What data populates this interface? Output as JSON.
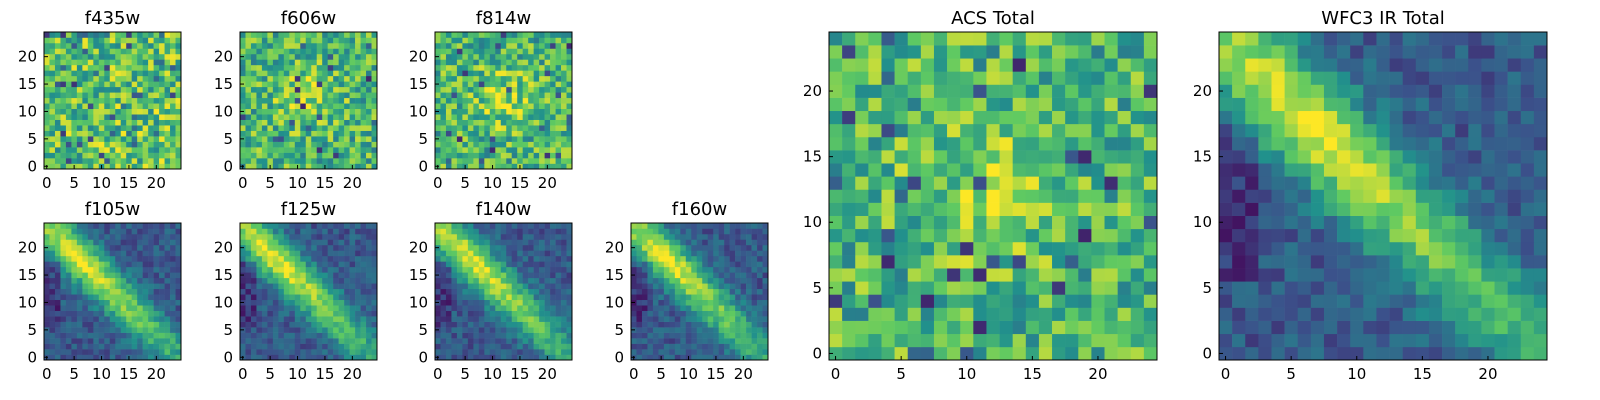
{
  "chart_data": [
    {
      "type": "heatmap",
      "title": "f435w",
      "xticks": [
        0,
        5,
        10,
        15,
        20
      ],
      "yticks": [
        0,
        5,
        10,
        15,
        20
      ],
      "xlim": [
        0,
        25
      ],
      "ylim": [
        0,
        25
      ],
      "grid_size": 25,
      "colormap": "viridis",
      "structure": "noise"
    },
    {
      "type": "heatmap",
      "title": "f606w",
      "xticks": [
        0,
        5,
        10,
        15,
        20
      ],
      "yticks": [
        0,
        5,
        10,
        15,
        20
      ],
      "xlim": [
        0,
        25
      ],
      "ylim": [
        0,
        25
      ],
      "grid_size": 25,
      "colormap": "viridis",
      "structure": "noise-with-faint-center"
    },
    {
      "type": "heatmap",
      "title": "f814w",
      "xticks": [
        0,
        5,
        10,
        15,
        20
      ],
      "yticks": [
        0,
        5,
        10,
        15,
        20
      ],
      "xlim": [
        0,
        25
      ],
      "ylim": [
        0,
        25
      ],
      "grid_size": 25,
      "colormap": "viridis",
      "structure": "noise-with-faint-center"
    },
    {
      "type": "heatmap",
      "title": "f105w",
      "xticks": [
        0,
        5,
        10,
        15,
        20
      ],
      "yticks": [
        0,
        5,
        10,
        15,
        20
      ],
      "xlim": [
        0,
        25
      ],
      "ylim": [
        0,
        25
      ],
      "grid_size": 25,
      "colormap": "viridis",
      "structure": "diagonal-ridge"
    },
    {
      "type": "heatmap",
      "title": "f125w",
      "xticks": [
        0,
        5,
        10,
        15,
        20
      ],
      "yticks": [
        0,
        5,
        10,
        15,
        20
      ],
      "xlim": [
        0,
        25
      ],
      "ylim": [
        0,
        25
      ],
      "grid_size": 25,
      "colormap": "viridis",
      "structure": "diagonal-ridge"
    },
    {
      "type": "heatmap",
      "title": "f140w",
      "xticks": [
        0,
        5,
        10,
        15,
        20
      ],
      "yticks": [
        0,
        5,
        10,
        15,
        20
      ],
      "xlim": [
        0,
        25
      ],
      "ylim": [
        0,
        25
      ],
      "grid_size": 25,
      "colormap": "viridis",
      "structure": "diagonal-ridge"
    },
    {
      "type": "heatmap",
      "title": "f160w",
      "xticks": [
        0,
        5,
        10,
        15,
        20
      ],
      "yticks": [
        0,
        5,
        10,
        15,
        20
      ],
      "xlim": [
        0,
        25
      ],
      "ylim": [
        0,
        25
      ],
      "grid_size": 25,
      "colormap": "viridis",
      "structure": "diagonal-ridge"
    },
    {
      "type": "heatmap",
      "title": "ACS Total",
      "xticks": [
        0,
        5,
        10,
        15,
        20
      ],
      "yticks": [
        0,
        5,
        10,
        15,
        20
      ],
      "xlim": [
        0,
        25
      ],
      "ylim": [
        0,
        25
      ],
      "grid_size": 25,
      "colormap": "viridis",
      "structure": "noise-with-faint-center"
    },
    {
      "type": "heatmap",
      "title": "WFC3 IR Total",
      "xticks": [
        0,
        5,
        10,
        15,
        20
      ],
      "yticks": [
        0,
        5,
        10,
        15,
        20
      ],
      "xlim": [
        0,
        25
      ],
      "ylim": [
        0,
        25
      ],
      "grid_size": 25,
      "colormap": "viridis",
      "structure": "diagonal-ridge"
    }
  ],
  "colors": {
    "viridis_stops": [
      "#440154",
      "#3b528b",
      "#21918c",
      "#5ec962",
      "#fde725"
    ],
    "axes_edge": "#000000",
    "background": "#ffffff"
  }
}
